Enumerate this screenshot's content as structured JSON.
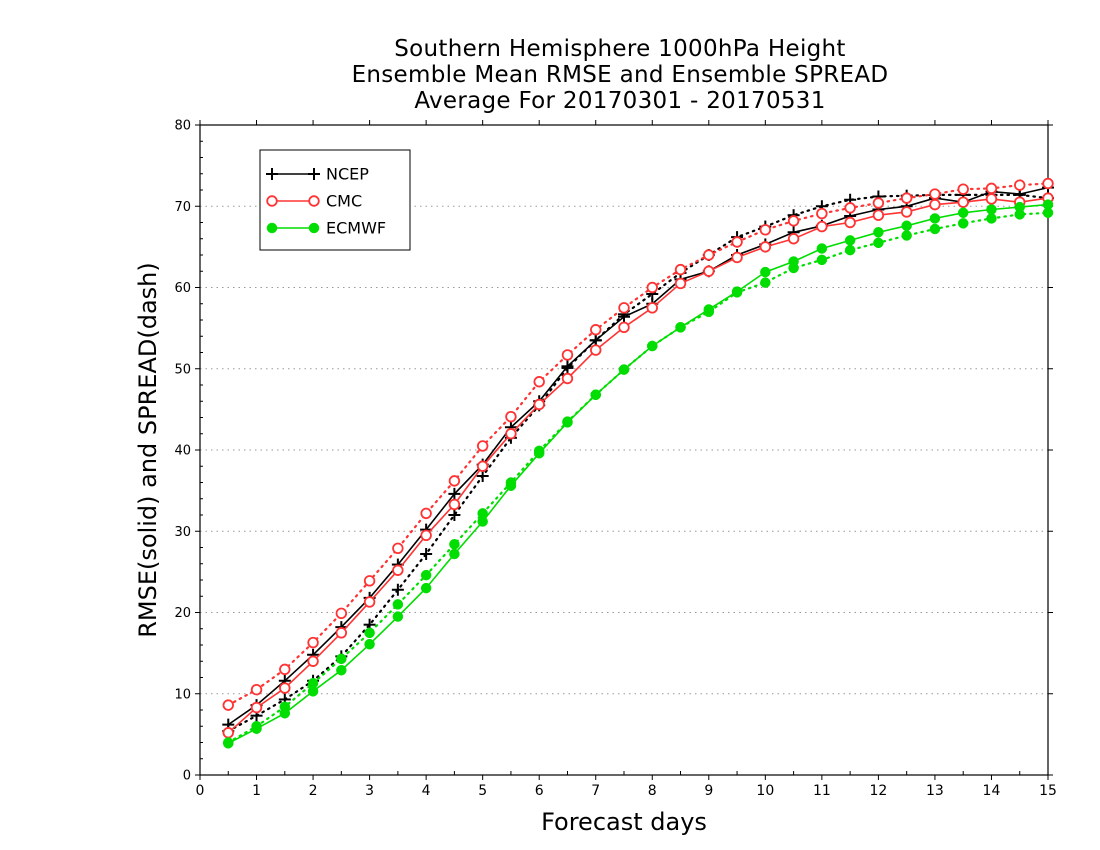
{
  "title": {
    "line1": "Southern Hemisphere 1000hPa Height",
    "line2": "Ensemble Mean RMSE and Ensemble SPREAD",
    "line3": "Average For 20170301 - 20170531"
  },
  "chart_data": {
    "type": "line",
    "title": "Southern Hemisphere 1000hPa Height / Ensemble Mean RMSE and Ensemble SPREAD / Average For 20170301 - 20170531",
    "xlabel": "Forecast days",
    "ylabel": "RMSE(solid) and SPREAD(dash)",
    "xlim": [
      0,
      15
    ],
    "ylim": [
      0,
      80
    ],
    "xticks": [
      0,
      1,
      2,
      3,
      4,
      5,
      6,
      7,
      8,
      9,
      10,
      11,
      12,
      13,
      14,
      15
    ],
    "yticks": [
      0,
      10,
      20,
      30,
      40,
      50,
      60,
      70,
      80
    ],
    "grid": "horizontal dotted",
    "legend_position": "top-left",
    "x": [
      0.5,
      1,
      1.5,
      2,
      2.5,
      3,
      3.5,
      4,
      4.5,
      5,
      5.5,
      6,
      6.5,
      7,
      7.5,
      8,
      8.5,
      9,
      9.5,
      10,
      10.5,
      11,
      11.5,
      12,
      12.5,
      13,
      13.5,
      14,
      14.5,
      15
    ],
    "series": [
      {
        "name": "NCEP",
        "color": "#000000",
        "marker": "plus",
        "rmse": [
          6.2,
          8.6,
          11.6,
          14.8,
          18.2,
          21.8,
          25.9,
          30.2,
          34.6,
          38.2,
          42.8,
          46.0,
          50.3,
          53.5,
          56.4,
          58.0,
          61.0,
          62.0,
          64.0,
          65.3,
          66.8,
          67.6,
          68.8,
          69.6,
          70.0,
          71.0,
          70.5,
          71.8,
          71.5,
          72.3
        ],
        "spread": [
          5.4,
          7.3,
          9.3,
          11.6,
          14.6,
          18.5,
          22.8,
          27.2,
          32.0,
          36.8,
          41.5,
          45.5,
          50.1,
          53.5,
          56.7,
          59.2,
          61.8,
          64.0,
          66.2,
          67.5,
          68.9,
          70.0,
          70.8,
          71.2,
          71.3,
          71.4,
          71.4,
          71.4,
          71.4,
          71.0
        ]
      },
      {
        "name": "CMC",
        "color": "#ff3333",
        "marker": "circle",
        "rmse": [
          5.2,
          8.3,
          10.7,
          14.0,
          17.5,
          21.3,
          25.2,
          29.5,
          33.3,
          38.0,
          42.0,
          45.6,
          48.8,
          52.3,
          55.1,
          57.5,
          60.5,
          62.0,
          63.7,
          65.0,
          66.0,
          67.5,
          68.0,
          68.9,
          69.3,
          70.2,
          70.5,
          70.9,
          70.5,
          71.0
        ],
        "spread": [
          8.6,
          10.5,
          13.0,
          16.3,
          19.9,
          23.9,
          27.9,
          32.2,
          36.2,
          40.5,
          44.1,
          48.4,
          51.7,
          54.8,
          57.5,
          60.0,
          62.2,
          64.0,
          65.6,
          67.1,
          68.2,
          69.1,
          69.8,
          70.4,
          71.0,
          71.5,
          72.1,
          72.2,
          72.6,
          72.8
        ]
      },
      {
        "name": "ECMWF",
        "color": "#00dd00",
        "marker": "dot",
        "rmse": [
          3.9,
          5.7,
          7.6,
          10.3,
          12.9,
          16.1,
          19.5,
          23.0,
          27.2,
          31.2,
          35.6,
          39.6,
          43.4,
          46.8,
          49.9,
          52.8,
          55.1,
          57.3,
          59.5,
          61.9,
          63.2,
          64.8,
          65.8,
          66.8,
          67.6,
          68.5,
          69.2,
          69.6,
          69.9,
          70.2
        ],
        "spread": [
          4.0,
          6.0,
          8.4,
          11.3,
          14.3,
          17.5,
          21.0,
          24.6,
          28.4,
          32.2,
          36.0,
          39.9,
          43.5,
          46.8,
          49.9,
          52.8,
          55.1,
          57.0,
          59.4,
          60.6,
          62.4,
          63.4,
          64.6,
          65.5,
          66.4,
          67.2,
          67.9,
          68.5,
          69.0,
          69.2
        ]
      }
    ]
  }
}
